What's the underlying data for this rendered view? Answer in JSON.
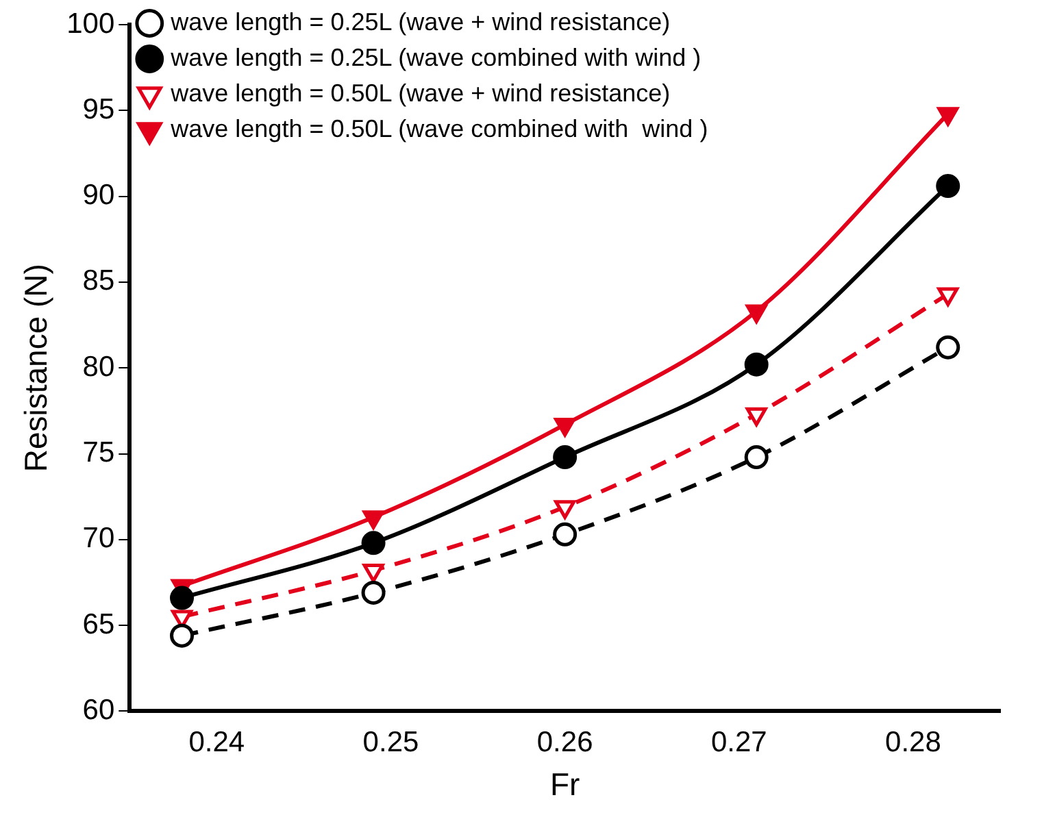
{
  "chart_data": {
    "type": "line",
    "xlabel": "Fr",
    "ylabel": "Resistance (N)",
    "x": [
      0.238,
      0.249,
      0.26,
      0.271,
      0.282
    ],
    "xlim": [
      0.235,
      0.285
    ],
    "xticks": [
      0.24,
      0.25,
      0.26,
      0.27,
      0.28
    ],
    "ylim": [
      60,
      100
    ],
    "yticks": [
      60,
      65,
      70,
      75,
      80,
      85,
      90,
      95,
      100
    ],
    "grid": false,
    "legend": "top left",
    "series": [
      {
        "name": "wave length = 0.25L (wave + wind resistance)",
        "color": "#000000",
        "marker": "circle",
        "line_style": "dashed",
        "values": [
          64.4,
          66.9,
          70.3,
          74.8,
          81.2
        ]
      },
      {
        "name": "wave length = 0.25L (wave combined with wind )",
        "color": "#000000",
        "marker": "circle",
        "line_style": "solid",
        "values": [
          66.6,
          69.8,
          74.8,
          80.2,
          90.6
        ]
      },
      {
        "name": "wave length = 0.50L (wave + wind resistance)",
        "color": "#e3001b",
        "marker": "triangle",
        "line_style": "dashed",
        "values": [
          65.5,
          68.2,
          71.9,
          77.3,
          84.3
        ]
      },
      {
        "name": "wave length = 0.50L (wave combined with  wind )",
        "color": "#e3001b",
        "marker": "triangle",
        "line_style": "solid",
        "values": [
          67.3,
          71.3,
          76.7,
          83.3,
          94.8
        ]
      }
    ]
  }
}
